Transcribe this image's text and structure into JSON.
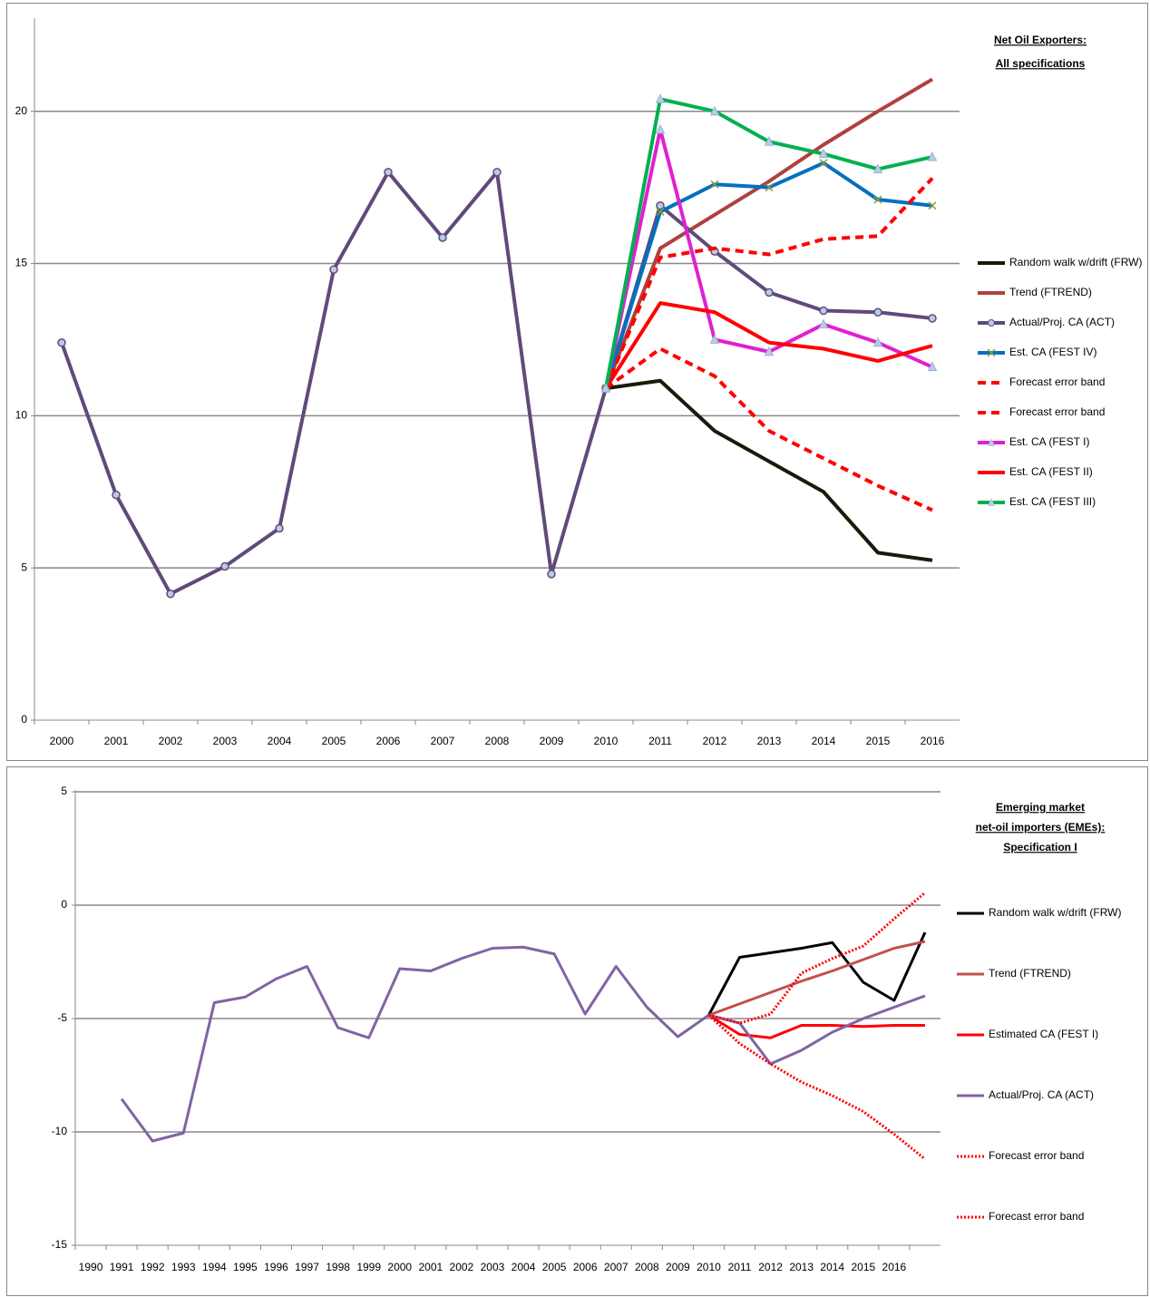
{
  "chart_data": [
    {
      "type": "line",
      "title": [
        "Net Oil Exporters:",
        "All specifications"
      ],
      "categories": [
        "2000",
        "2001",
        "2002",
        "2003",
        "2004",
        "2005",
        "2006",
        "2007",
        "2008",
        "2009",
        "2010",
        "2011",
        "2012",
        "2013",
        "2014",
        "2015",
        "2016"
      ],
      "ylim": [
        0,
        23
      ],
      "yticks": [
        0,
        5,
        10,
        15,
        20
      ],
      "grid": true,
      "series": [
        {
          "name": "Random walk w/drift (FRW)",
          "color": "#1a1a0a",
          "values": [
            null,
            null,
            null,
            null,
            null,
            null,
            null,
            null,
            null,
            null,
            10.9,
            11.15,
            9.5,
            8.5,
            7.5,
            5.5,
            5.25
          ]
        },
        {
          "name": "Trend (FTREND)",
          "color": "#b0403f",
          "values": [
            null,
            null,
            null,
            null,
            null,
            null,
            null,
            null,
            null,
            null,
            10.9,
            15.5,
            16.6,
            17.7,
            18.9,
            20.0,
            21.05
          ]
        },
        {
          "name": "Actual/Proj. CA (ACT)",
          "color": "#604a7b",
          "marker": "circle",
          "values": [
            12.4,
            7.4,
            4.15,
            5.05,
            6.3,
            14.8,
            18.0,
            15.85,
            18.0,
            4.8,
            10.9,
            16.9,
            15.4,
            14.05,
            13.45,
            13.4,
            13.2
          ]
        },
        {
          "name": "Est. CA (FEST IV)",
          "color": "#0070c0",
          "marker": "x",
          "values": [
            null,
            null,
            null,
            null,
            null,
            null,
            null,
            null,
            null,
            null,
            10.9,
            16.7,
            17.6,
            17.5,
            18.3,
            17.1,
            16.9
          ]
        },
        {
          "name": "Forecast error band",
          "color": "#ff0000",
          "dash": "dashed",
          "values": [
            null,
            null,
            null,
            null,
            null,
            null,
            null,
            null,
            null,
            null,
            10.9,
            15.2,
            15.5,
            15.3,
            15.8,
            15.9,
            17.8
          ]
        },
        {
          "name": "Forecast error band",
          "color": "#ff0000",
          "dash": "dashed",
          "values": [
            null,
            null,
            null,
            null,
            null,
            null,
            null,
            null,
            null,
            null,
            10.9,
            12.2,
            11.3,
            9.5,
            8.6,
            7.7,
            6.9
          ]
        },
        {
          "name": "Est. CA (FEST I)",
          "color": "#e020d0",
          "marker": "triangle",
          "values": [
            null,
            null,
            null,
            null,
            null,
            null,
            null,
            null,
            null,
            null,
            10.9,
            19.4,
            12.5,
            12.1,
            13.0,
            12.4,
            11.6
          ]
        },
        {
          "name": "Est. CA (FEST II)",
          "color": "#ff0000",
          "values": [
            null,
            null,
            null,
            null,
            null,
            null,
            null,
            null,
            null,
            null,
            10.9,
            13.7,
            13.4,
            12.4,
            12.2,
            11.8,
            12.3
          ]
        },
        {
          "name": "Est. CA (FEST III)",
          "color": "#00b050",
          "marker": "triangle",
          "values": [
            null,
            null,
            null,
            null,
            null,
            null,
            null,
            null,
            null,
            null,
            10.9,
            20.4,
            20.0,
            19.0,
            18.6,
            18.1,
            18.5
          ]
        }
      ]
    },
    {
      "type": "line",
      "title": [
        "Emerging market",
        "net-oil importers (EMEs):",
        "Specification I"
      ],
      "categories": [
        "1990",
        "1991",
        "1992",
        "1993",
        "1994",
        "1995",
        "1996",
        "1997",
        "1998",
        "1999",
        "2000",
        "2001",
        "2002",
        "2003",
        "2004",
        "2005",
        "2006",
        "2007",
        "2008",
        "2009",
        "2010",
        "2011",
        "2012",
        "2013",
        "2014",
        "2015",
        "2016",
        null
      ],
      "ylim": [
        -15,
        5
      ],
      "yticks": [
        -15,
        -10,
        -5,
        0,
        5
      ],
      "grid": true,
      "series": [
        {
          "name": "Random walk w/drift (FRW)",
          "color": "#000000",
          "values": [
            null,
            null,
            null,
            null,
            null,
            null,
            null,
            null,
            null,
            null,
            null,
            null,
            null,
            null,
            null,
            null,
            null,
            null,
            null,
            null,
            -4.85,
            -2.3,
            -2.1,
            -1.9,
            -1.65,
            -3.4,
            -4.2,
            -1.2
          ]
        },
        {
          "name": "Trend (FTREND)",
          "color": "#c0504d",
          "values": [
            null,
            null,
            null,
            null,
            null,
            null,
            null,
            null,
            null,
            null,
            null,
            null,
            null,
            null,
            null,
            null,
            null,
            null,
            null,
            null,
            -4.85,
            -4.35,
            -3.85,
            -3.35,
            -2.9,
            -2.4,
            -1.9,
            -1.6
          ]
        },
        {
          "name": "Estimated CA (FEST I)",
          "color": "#ff0000",
          "values": [
            null,
            null,
            null,
            null,
            null,
            null,
            null,
            null,
            null,
            null,
            null,
            null,
            null,
            null,
            null,
            null,
            null,
            null,
            null,
            null,
            -4.85,
            -5.7,
            -5.85,
            -5.3,
            -5.3,
            -5.35,
            -5.3,
            -5.3
          ]
        },
        {
          "name": "Actual/Proj. CA (ACT)",
          "color": "#8064a2",
          "values": [
            null,
            -8.55,
            -10.4,
            -10.05,
            -4.3,
            -4.05,
            -3.25,
            -2.7,
            -5.4,
            -5.85,
            -2.8,
            -2.9,
            -2.35,
            -1.9,
            -1.85,
            -2.15,
            -4.8,
            -2.7,
            -4.5,
            -5.8,
            -4.85,
            -5.2,
            -7.0,
            -6.4,
            -5.6,
            -5.0,
            -4.5,
            -4.0
          ]
        },
        {
          "name": "Forecast error band",
          "color": "#ff0000",
          "dash": "dotted",
          "values": [
            null,
            null,
            null,
            null,
            null,
            null,
            null,
            null,
            null,
            null,
            null,
            null,
            null,
            null,
            null,
            null,
            null,
            null,
            null,
            null,
            -4.85,
            -5.2,
            -4.8,
            -3.0,
            -2.35,
            -1.8,
            -0.6,
            0.55
          ]
        },
        {
          "name": "Forecast error band",
          "color": "#ff0000",
          "dash": "dotted",
          "values": [
            null,
            null,
            null,
            null,
            null,
            null,
            null,
            null,
            null,
            null,
            null,
            null,
            null,
            null,
            null,
            null,
            null,
            null,
            null,
            null,
            -4.85,
            -6.1,
            -7.0,
            -7.8,
            -8.4,
            -9.1,
            -10.1,
            -11.2
          ]
        }
      ]
    }
  ]
}
